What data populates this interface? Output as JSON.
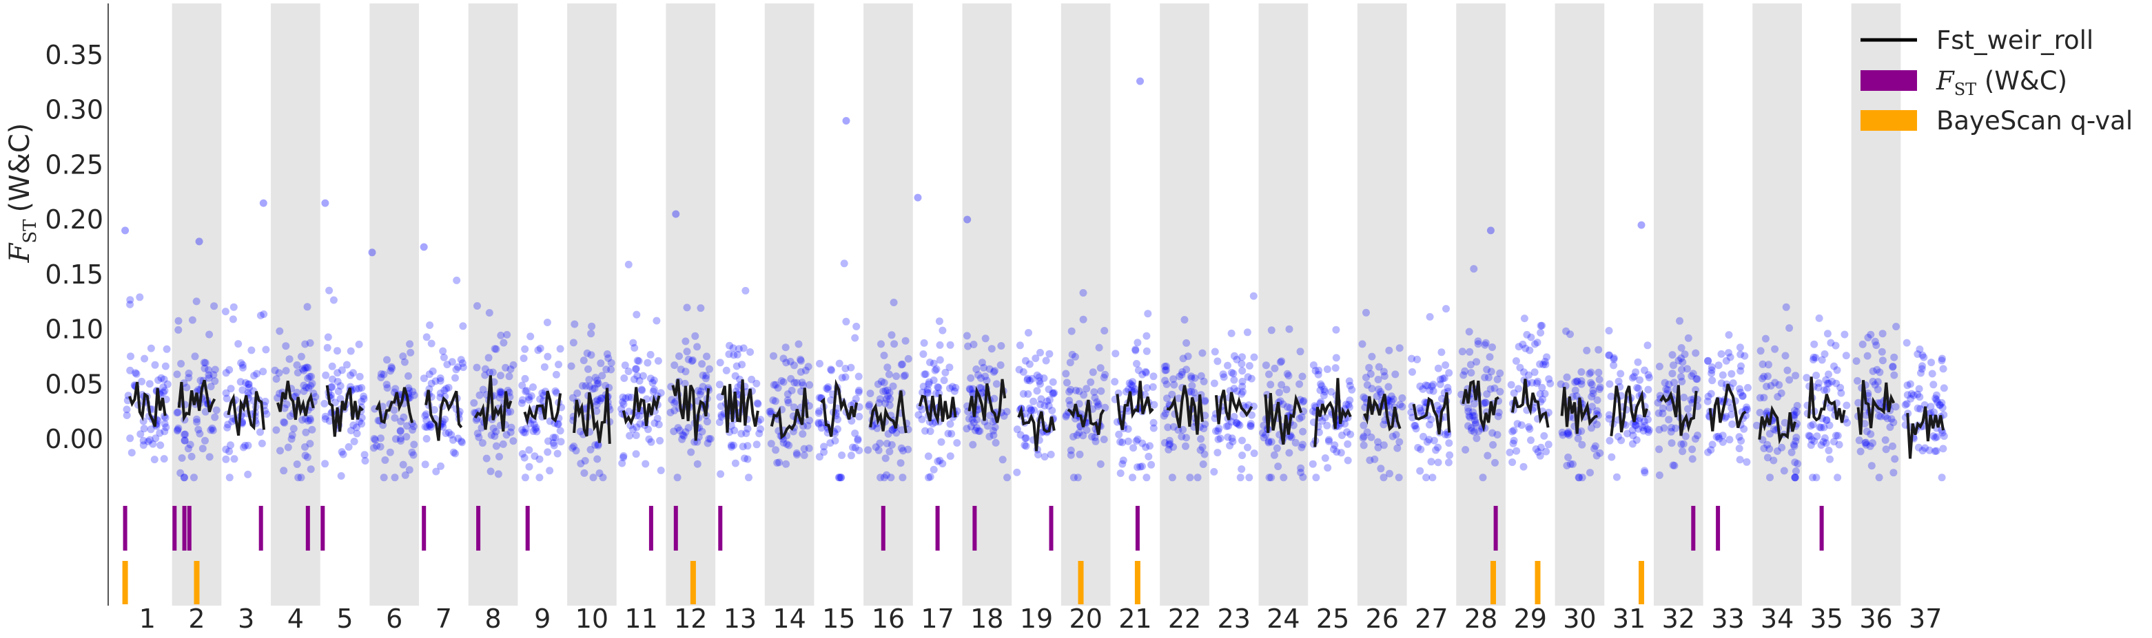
{
  "chart_data": {
    "type": "scatter",
    "ylabel_symbol": "F",
    "ylabel_subscript": "ST",
    "ylabel_suffix": "(W&C)",
    "ylim": [
      -0.04,
      0.4
    ],
    "yticks": [
      "0.00",
      "0.05",
      "0.10",
      "0.15",
      "0.20",
      "0.25",
      "0.30",
      "0.35"
    ],
    "ytick_values": [
      0.0,
      0.05,
      0.1,
      0.15,
      0.2,
      0.25,
      0.3,
      0.35
    ],
    "shaded_bands": "alternate-chromosomes",
    "chromosomes": [
      {
        "label": "1",
        "mean": 0.03,
        "spread": 0.03
      },
      {
        "label": "2",
        "mean": 0.035,
        "spread": 0.035
      },
      {
        "label": "3",
        "mean": 0.028,
        "spread": 0.03
      },
      {
        "label": "4",
        "mean": 0.03,
        "spread": 0.03
      },
      {
        "label": "5",
        "mean": 0.032,
        "spread": 0.03
      },
      {
        "label": "6",
        "mean": 0.025,
        "spread": 0.03
      },
      {
        "label": "7",
        "mean": 0.03,
        "spread": 0.032
      },
      {
        "label": "8",
        "mean": 0.03,
        "spread": 0.03
      },
      {
        "label": "9",
        "mean": 0.025,
        "spread": 0.028
      },
      {
        "label": "10",
        "mean": 0.028,
        "spread": 0.03
      },
      {
        "label": "11",
        "mean": 0.03,
        "spread": 0.03
      },
      {
        "label": "12",
        "mean": 0.032,
        "spread": 0.032
      },
      {
        "label": "13",
        "mean": 0.03,
        "spread": 0.03
      },
      {
        "label": "14",
        "mean": 0.02,
        "spread": 0.03
      },
      {
        "label": "15",
        "mean": 0.022,
        "spread": 0.03
      },
      {
        "label": "16",
        "mean": 0.025,
        "spread": 0.03
      },
      {
        "label": "17",
        "mean": 0.028,
        "spread": 0.03
      },
      {
        "label": "18",
        "mean": 0.028,
        "spread": 0.03
      },
      {
        "label": "19",
        "mean": 0.025,
        "spread": 0.03
      },
      {
        "label": "20",
        "mean": 0.025,
        "spread": 0.03
      },
      {
        "label": "21",
        "mean": 0.03,
        "spread": 0.035
      },
      {
        "label": "22",
        "mean": 0.025,
        "spread": 0.03
      },
      {
        "label": "23",
        "mean": 0.03,
        "spread": 0.03
      },
      {
        "label": "24",
        "mean": 0.02,
        "spread": 0.028
      },
      {
        "label": "25",
        "mean": 0.02,
        "spread": 0.03
      },
      {
        "label": "26",
        "mean": 0.022,
        "spread": 0.028
      },
      {
        "label": "27",
        "mean": 0.025,
        "spread": 0.03
      },
      {
        "label": "28",
        "mean": 0.03,
        "spread": 0.03
      },
      {
        "label": "29",
        "mean": 0.03,
        "spread": 0.032
      },
      {
        "label": "30",
        "mean": 0.025,
        "spread": 0.03
      },
      {
        "label": "31",
        "mean": 0.025,
        "spread": 0.03
      },
      {
        "label": "32",
        "mean": 0.028,
        "spread": 0.03
      },
      {
        "label": "33",
        "mean": 0.03,
        "spread": 0.03
      },
      {
        "label": "34",
        "mean": 0.015,
        "spread": 0.03
      },
      {
        "label": "35",
        "mean": 0.025,
        "spread": 0.03
      },
      {
        "label": "36",
        "mean": 0.025,
        "spread": 0.03
      },
      {
        "label": "37",
        "mean": 0.02,
        "spread": 0.028
      }
    ],
    "outliers": [
      {
        "chrom": "1",
        "frac": 0.05,
        "y": 0.19
      },
      {
        "chrom": "2",
        "frac": 0.55,
        "y": 0.18
      },
      {
        "chrom": "3",
        "frac": 0.85,
        "y": 0.215
      },
      {
        "chrom": "5",
        "frac": 0.1,
        "y": 0.215
      },
      {
        "chrom": "6",
        "frac": 0.05,
        "y": 0.17
      },
      {
        "chrom": "7",
        "frac": 0.1,
        "y": 0.175
      },
      {
        "chrom": "12",
        "frac": 0.2,
        "y": 0.205
      },
      {
        "chrom": "15",
        "frac": 0.65,
        "y": 0.29
      },
      {
        "chrom": "17",
        "frac": 0.1,
        "y": 0.22
      },
      {
        "chrom": "18",
        "frac": 0.1,
        "y": 0.2
      },
      {
        "chrom": "21",
        "frac": 0.6,
        "y": 0.326
      },
      {
        "chrom": "28",
        "frac": 0.7,
        "y": 0.19
      },
      {
        "chrom": "31",
        "frac": 0.75,
        "y": 0.195
      }
    ],
    "fst_track": [
      {
        "chrom": "1",
        "frac": 0.05
      },
      {
        "chrom": "2",
        "frac": 0.05
      },
      {
        "chrom": "2",
        "frac": 0.25
      },
      {
        "chrom": "2",
        "frac": 0.35
      },
      {
        "chrom": "3",
        "frac": 0.8
      },
      {
        "chrom": "4",
        "frac": 0.75
      },
      {
        "chrom": "5",
        "frac": 0.05
      },
      {
        "chrom": "7",
        "frac": 0.1
      },
      {
        "chrom": "8",
        "frac": 0.2
      },
      {
        "chrom": "9",
        "frac": 0.2
      },
      {
        "chrom": "11",
        "frac": 0.7
      },
      {
        "chrom": "12",
        "frac": 0.2
      },
      {
        "chrom": "13",
        "frac": 0.1
      },
      {
        "chrom": "16",
        "frac": 0.4
      },
      {
        "chrom": "17",
        "frac": 0.5
      },
      {
        "chrom": "18",
        "frac": 0.25
      },
      {
        "chrom": "19",
        "frac": 0.8
      },
      {
        "chrom": "21",
        "frac": 0.55
      },
      {
        "chrom": "28",
        "frac": 0.8
      },
      {
        "chrom": "32",
        "frac": 0.8
      },
      {
        "chrom": "33",
        "frac": 0.3
      },
      {
        "chrom": "35",
        "frac": 0.4
      }
    ],
    "bayescan_track": [
      {
        "chrom": "1",
        "frac": 0.05
      },
      {
        "chrom": "2",
        "frac": 0.5
      },
      {
        "chrom": "12",
        "frac": 0.55
      },
      {
        "chrom": "20",
        "frac": 0.4
      },
      {
        "chrom": "21",
        "frac": 0.55
      },
      {
        "chrom": "28",
        "frac": 0.75
      },
      {
        "chrom": "29",
        "frac": 0.65
      },
      {
        "chrom": "31",
        "frac": 0.75
      }
    ],
    "legend": {
      "position": "top-right",
      "entries": [
        {
          "label": "Fst_weir_roll",
          "color": "#000000",
          "shape": "line"
        },
        {
          "label_prefix": "F",
          "label_sub": "ST",
          "label_suffix": " (W&C)",
          "color": "#8b008b",
          "shape": "patch"
        },
        {
          "label": "BayeScan q-val",
          "color": "#ffa500",
          "shape": "patch"
        }
      ]
    },
    "colors": {
      "points": "#0000ff",
      "rolling_line": "#1a1a1a",
      "band": "#e5e5e5",
      "fst_track": "#8b008b",
      "bayescan_track": "#ffa500",
      "axis": "#555555",
      "text": "#262626"
    }
  }
}
